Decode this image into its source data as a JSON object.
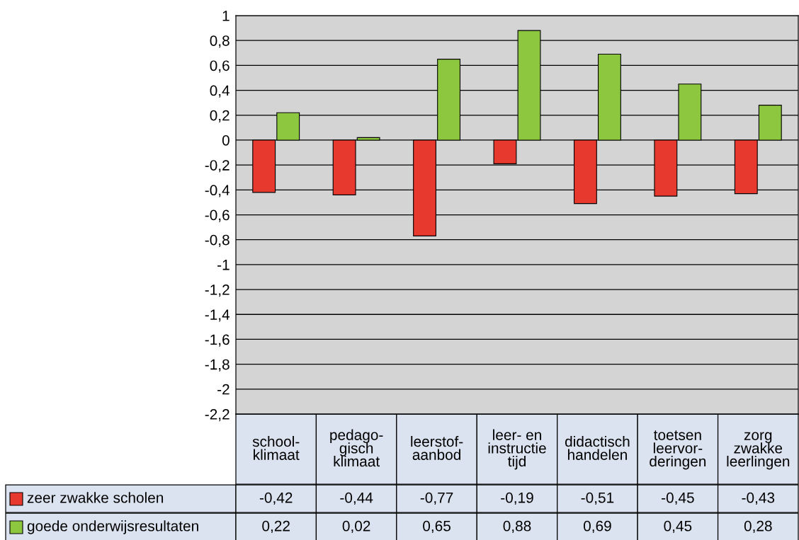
{
  "chart_data": {
    "type": "bar",
    "categories": [
      "school-\nklimaat",
      "pedago-\ngisch\nklimaat",
      "leerstof-\naanbod",
      "leer- en\ninstructie\ntijd",
      "didactisch\nhandelen",
      "toetsen\nleervor-\nderingen",
      "zorg\nzwakke\nleerlingen"
    ],
    "series": [
      {
        "name": "zeer zwakke scholen",
        "color": "#e8392e",
        "values": [
          -0.42,
          -0.44,
          -0.77,
          -0.19,
          -0.51,
          -0.45,
          -0.43
        ],
        "value_labels": [
          "-0,42",
          "-0,44",
          "-0,77",
          "-0,19",
          "-0,51",
          "-0,45",
          "-0,43"
        ]
      },
      {
        "name": "goede onderwijsresultaten",
        "color": "#8dc63f",
        "values": [
          0.22,
          0.02,
          0.65,
          0.88,
          0.69,
          0.45,
          0.28
        ],
        "value_labels": [
          "0,22",
          "0,02",
          "0,65",
          "0,88",
          "0,69",
          "0,45",
          "0,28"
        ]
      }
    ],
    "ylim": [
      -2.2,
      1
    ],
    "yticks": [
      {
        "value": 1,
        "label": "1"
      },
      {
        "value": 0.8,
        "label": "0,8"
      },
      {
        "value": 0.6,
        "label": "0,6"
      },
      {
        "value": 0.4,
        "label": "0,4"
      },
      {
        "value": 0.2,
        "label": "0,2"
      },
      {
        "value": 0,
        "label": "0"
      },
      {
        "value": -0.2,
        "label": "-0,2"
      },
      {
        "value": -0.4,
        "label": "-0,4"
      },
      {
        "value": -0.6,
        "label": "-0,6"
      },
      {
        "value": -0.8,
        "label": "-0,8"
      },
      {
        "value": -1,
        "label": "-1"
      },
      {
        "value": -1.2,
        "label": "-1,2"
      },
      {
        "value": -1.4,
        "label": "-1,4"
      },
      {
        "value": -1.6,
        "label": "-1,6"
      },
      {
        "value": -1.8,
        "label": "-1,8"
      },
      {
        "value": -2,
        "label": "-2"
      },
      {
        "value": -2.2,
        "label": "-2,2"
      }
    ],
    "grid": "y",
    "legend": "bottom left"
  }
}
